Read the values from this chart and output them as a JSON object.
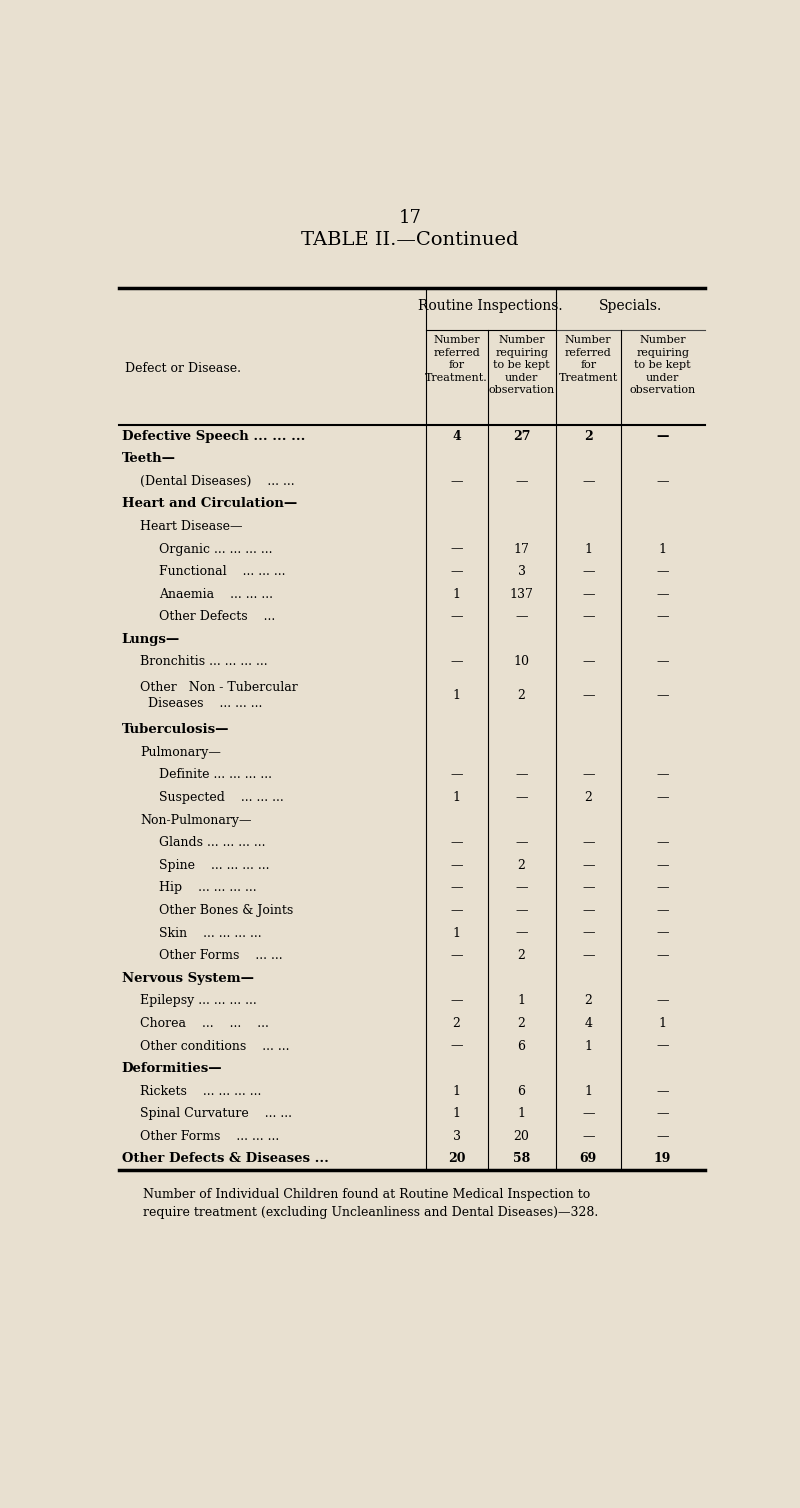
{
  "page_number": "17",
  "title": "TABLE II.—Continued",
  "bg_color": "#e8e0d0",
  "col_headers_group1": "Routine Inspections.",
  "col_headers_group2": "Specials.",
  "col_sub_headers": [
    "Number\nreferred\nfor\nTreatment.",
    "Number\nrequiring\nto be kept\nunder\nobservation",
    "Number\nreferred\nfor\nTreatment",
    "Number\nrequiring\nto be kept\nunder\nobservation"
  ],
  "row_label_header": "Defect or Disease.",
  "rows": [
    {
      "label": "Defective Speech ... ... ...",
      "bold": true,
      "indent": 0,
      "v1": "4",
      "v2": "27",
      "v3": "2",
      "v4": "—"
    },
    {
      "label": "Teeth—",
      "bold": true,
      "indent": 0,
      "v1": "",
      "v2": "",
      "v3": "",
      "v4": ""
    },
    {
      "label": "(Dental Diseases)    ... ...",
      "bold": false,
      "indent": 1,
      "v1": "—",
      "v2": "—",
      "v3": "—",
      "v4": "—"
    },
    {
      "label": "Heart and Circulation—",
      "bold": true,
      "indent": 0,
      "v1": "",
      "v2": "",
      "v3": "",
      "v4": ""
    },
    {
      "label": "Heart Disease—",
      "bold": false,
      "indent": 1,
      "v1": "",
      "v2": "",
      "v3": "",
      "v4": ""
    },
    {
      "label": "Organic ... ... ... ...",
      "bold": false,
      "indent": 2,
      "v1": "—",
      "v2": "17",
      "v3": "1",
      "v4": "1"
    },
    {
      "label": "Functional    ... ... ...",
      "bold": false,
      "indent": 2,
      "v1": "—",
      "v2": "3",
      "v3": "—",
      "v4": "—"
    },
    {
      "label": "Anaemia    ... ... ...",
      "bold": false,
      "indent": 2,
      "v1": "1",
      "v2": "137",
      "v3": "—",
      "v4": "—"
    },
    {
      "label": "Other Defects    ...",
      "bold": false,
      "indent": 2,
      "v1": "—",
      "v2": "—",
      "v3": "—",
      "v4": "—"
    },
    {
      "label": "Lungs—",
      "bold": true,
      "indent": 0,
      "v1": "",
      "v2": "",
      "v3": "",
      "v4": ""
    },
    {
      "label": "Bronchitis ... ... ... ...",
      "bold": false,
      "indent": 1,
      "v1": "—",
      "v2": "10",
      "v3": "—",
      "v4": "—"
    },
    {
      "label": "Other   Non - Tubercular\n  Diseases    ... ... ...",
      "bold": false,
      "indent": 1,
      "v1": "1",
      "v2": "2",
      "v3": "—",
      "v4": "—"
    },
    {
      "label": "Tuberculosis—",
      "bold": true,
      "indent": 0,
      "v1": "",
      "v2": "",
      "v3": "",
      "v4": ""
    },
    {
      "label": "Pulmonary—",
      "bold": false,
      "indent": 1,
      "v1": "",
      "v2": "",
      "v3": "",
      "v4": ""
    },
    {
      "label": "Definite ... ... ... ...",
      "bold": false,
      "indent": 2,
      "v1": "—",
      "v2": "—",
      "v3": "—",
      "v4": "—"
    },
    {
      "label": "Suspected    ... ... ...",
      "bold": false,
      "indent": 2,
      "v1": "1",
      "v2": "—",
      "v3": "2",
      "v4": "—"
    },
    {
      "label": "Non-Pulmonary—",
      "bold": false,
      "indent": 1,
      "v1": "",
      "v2": "",
      "v3": "",
      "v4": ""
    },
    {
      "label": "Glands ... ... ... ...",
      "bold": false,
      "indent": 2,
      "v1": "—",
      "v2": "—",
      "v3": "—",
      "v4": "—"
    },
    {
      "label": "Spine    ... ... ... ...",
      "bold": false,
      "indent": 2,
      "v1": "—",
      "v2": "2",
      "v3": "—",
      "v4": "—"
    },
    {
      "label": "Hip    ... ... ... ...",
      "bold": false,
      "indent": 2,
      "v1": "—",
      "v2": "—",
      "v3": "—",
      "v4": "—"
    },
    {
      "label": "Other Bones & Joints",
      "bold": false,
      "indent": 2,
      "v1": "—",
      "v2": "—",
      "v3": "—",
      "v4": "—"
    },
    {
      "label": "Skin    ... ... ... ...",
      "bold": false,
      "indent": 2,
      "v1": "1",
      "v2": "—",
      "v3": "—",
      "v4": "—"
    },
    {
      "label": "Other Forms    ... ...",
      "bold": false,
      "indent": 2,
      "v1": "—",
      "v2": "2",
      "v3": "—",
      "v4": "—"
    },
    {
      "label": "Nervous System—",
      "bold": true,
      "indent": 0,
      "v1": "",
      "v2": "",
      "v3": "",
      "v4": ""
    },
    {
      "label": "Epilepsy ... ... ... ...",
      "bold": false,
      "indent": 1,
      "v1": "—",
      "v2": "1",
      "v3": "2",
      "v4": "—"
    },
    {
      "label": "Chorea    ...    ...    ...",
      "bold": false,
      "indent": 1,
      "v1": "2",
      "v2": "2",
      "v3": "4",
      "v4": "1"
    },
    {
      "label": "Other conditions    ... ...",
      "bold": false,
      "indent": 1,
      "v1": "—",
      "v2": "6",
      "v3": "1",
      "v4": "—"
    },
    {
      "label": "Deformities—",
      "bold": true,
      "indent": 0,
      "v1": "",
      "v2": "",
      "v3": "",
      "v4": ""
    },
    {
      "label": "Rickets    ... ... ... ...",
      "bold": false,
      "indent": 1,
      "v1": "1",
      "v2": "6",
      "v3": "1",
      "v4": "—"
    },
    {
      "label": "Spinal Curvature    ... ...",
      "bold": false,
      "indent": 1,
      "v1": "1",
      "v2": "1",
      "v3": "—",
      "v4": "—"
    },
    {
      "label": "Other Forms    ... ... ...",
      "bold": false,
      "indent": 1,
      "v1": "3",
      "v2": "20",
      "v3": "—",
      "v4": "—"
    },
    {
      "label": "Other Defects & Diseases ...",
      "bold": true,
      "indent": 0,
      "v1": "20",
      "v2": "58",
      "v3": "69",
      "v4": "19"
    }
  ],
  "footer": "Number of Individual Children found at Routine Medical Inspection to\nrequire treatment (excluding Uncleanliness and Dental Diseases)—328."
}
